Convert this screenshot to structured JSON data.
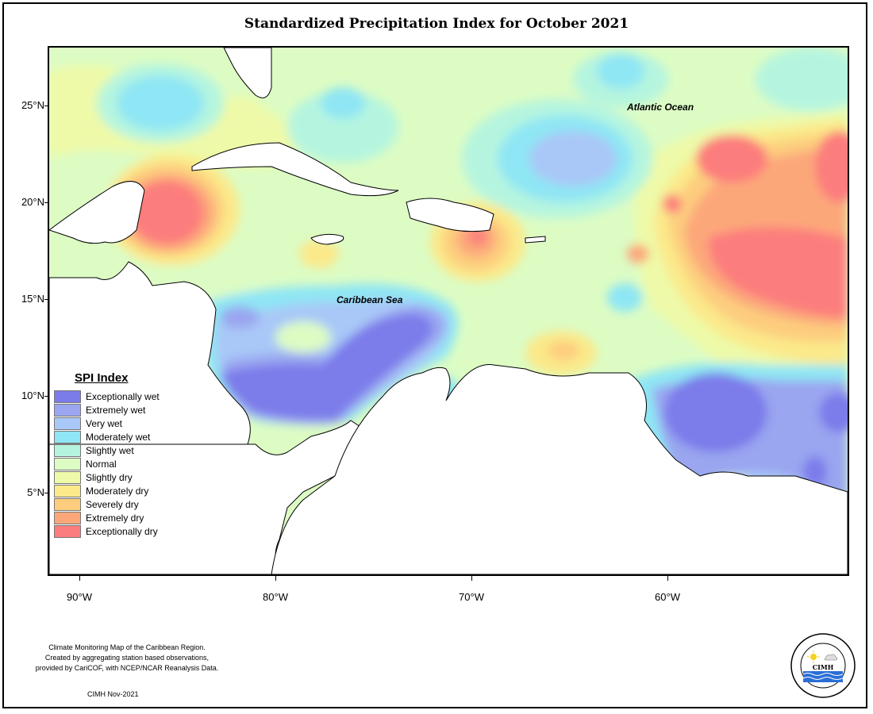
{
  "title": "Standardized Precipitation Index for October 2021",
  "lat_labels": [
    "25°N",
    "20°N",
    "15°N",
    "10°N",
    "5°N"
  ],
  "lon_labels": [
    "90°W",
    "80°W",
    "70°W",
    "60°W"
  ],
  "map_labels": {
    "atlantic": "Atlantic Ocean",
    "caribbean": "Caribbean Sea"
  },
  "legend": {
    "title": "SPI Index",
    "items": [
      {
        "label": "Exceptionally wet",
        "color": "#7b7bea"
      },
      {
        "label": "Extremely wet",
        "color": "#9aa6f0"
      },
      {
        "label": "Very wet",
        "color": "#a9c8f7"
      },
      {
        "label": "Moderately wet",
        "color": "#8fe6f4"
      },
      {
        "label": "Slightly wet",
        "color": "#b5f5df"
      },
      {
        "label": "Normal",
        "color": "#dcfcc4"
      },
      {
        "label": "Slightly dry",
        "color": "#eefaa8"
      },
      {
        "label": "Moderately dry",
        "color": "#fbe98a"
      },
      {
        "label": "Severely dry",
        "color": "#fdcd7e"
      },
      {
        "label": "Extremely dry",
        "color": "#fca77a"
      },
      {
        "label": "Exceptionally dry",
        "color": "#fc7d7d"
      }
    ]
  },
  "footer": {
    "line1": "Climate Monitoring Map of the Caribbean Region.",
    "line2": "Created by aggregating station based observations,",
    "line3": "provided by CariCOF, with NCEP/NCAR Reanalysis Data.",
    "credit": "CIMH Nov-2021"
  },
  "logo": {
    "text": "CIMH"
  }
}
